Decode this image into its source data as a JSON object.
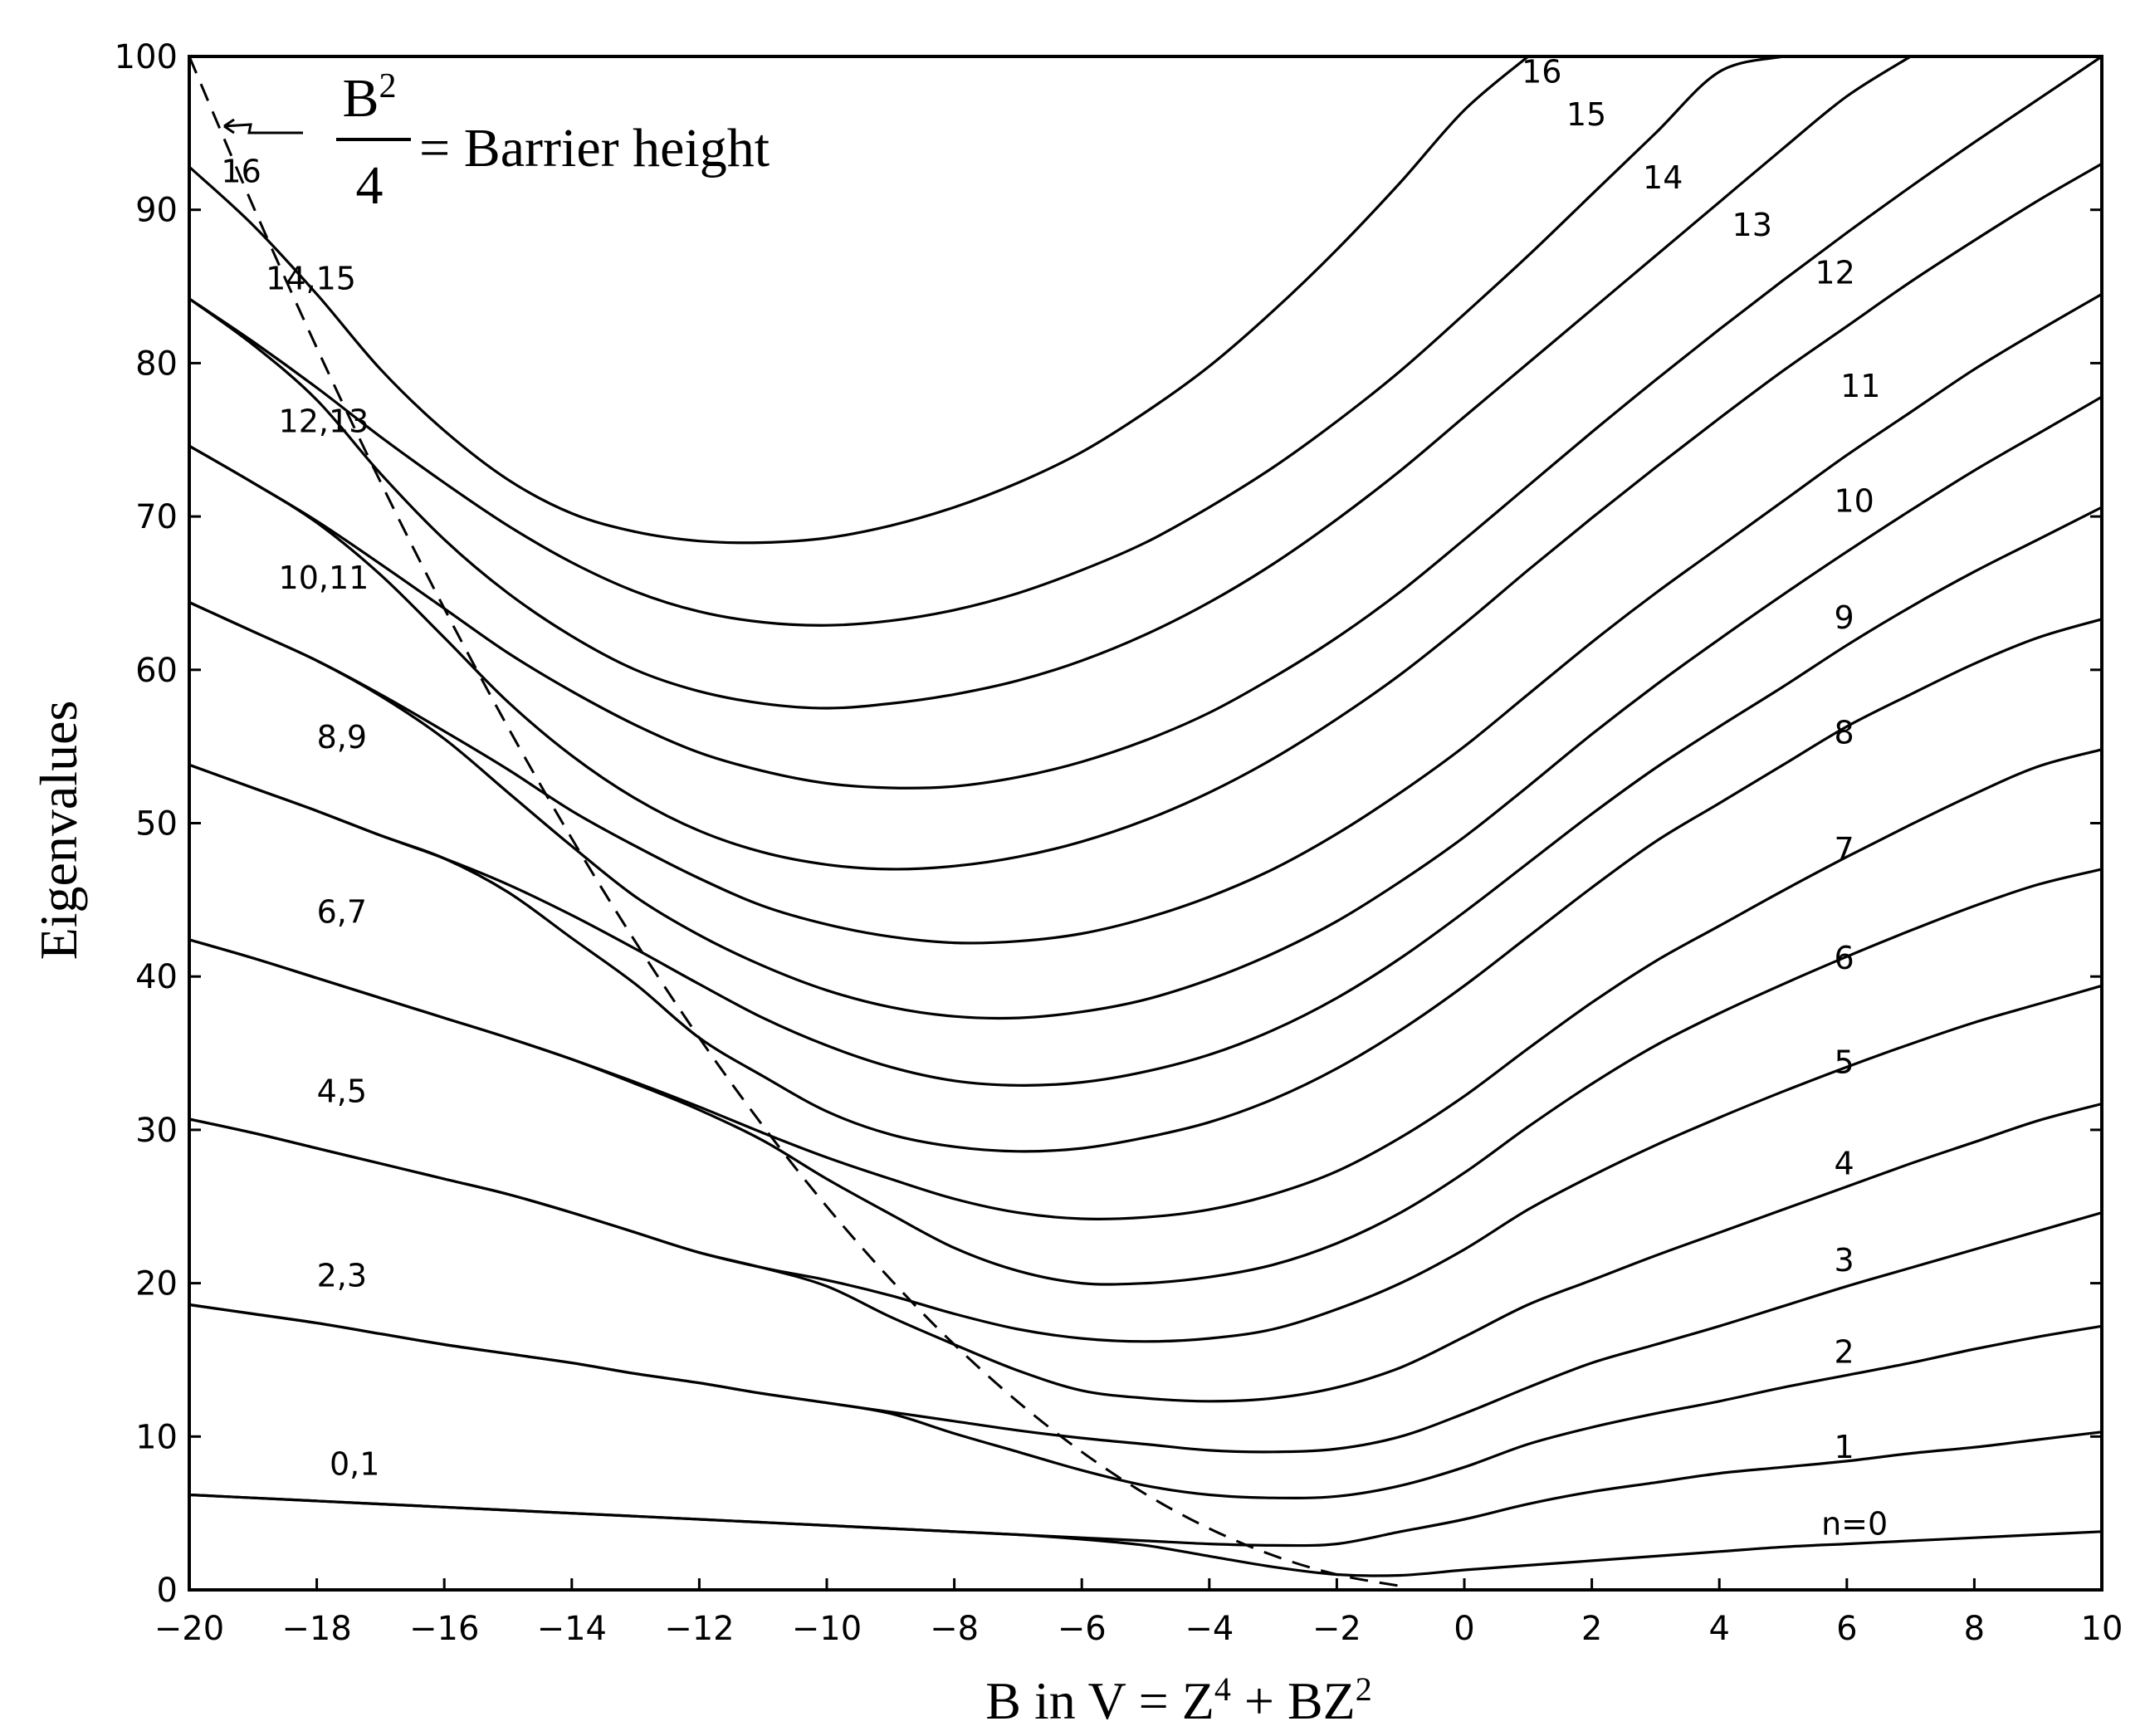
{
  "chart_data": {
    "type": "line",
    "title": "",
    "xlabel": "B in V = Z⁴ + BZ²",
    "xlabel_parts": [
      "B in V = Z",
      "4",
      " + BZ",
      "2"
    ],
    "ylabel": "Eigenvalues",
    "xlim": [
      -20,
      10
    ],
    "ylim": [
      0,
      100
    ],
    "xticks": [
      -20,
      -18,
      -16,
      -14,
      -12,
      -10,
      -8,
      -6,
      -4,
      -2,
      0,
      2,
      4,
      6,
      8,
      10
    ],
    "xtick_labels": [
      "−20",
      "−18",
      "−16",
      "−14",
      "−12",
      "−10",
      "−8",
      "−6",
      "−4",
      "−2",
      "0",
      "2",
      "4",
      "6",
      "8",
      "10"
    ],
    "yticks": [
      0,
      10,
      20,
      30,
      40,
      50,
      60,
      70,
      80,
      90,
      100
    ],
    "ytick_labels": [
      "0",
      "10",
      "20",
      "30",
      "40",
      "50",
      "60",
      "70",
      "80",
      "90",
      "100"
    ],
    "grid": false,
    "annotation": {
      "numerator_base": "B",
      "numerator_exp": "2",
      "denominator": "4",
      "text": "= Barrier height"
    },
    "barrier_curve": {
      "name": "B²/4 = Barrier height",
      "style": "dashed",
      "x": [
        -20,
        -19,
        -18,
        -17,
        -16,
        -15,
        -14,
        -13,
        -12,
        -11,
        -10,
        -9,
        -8,
        -7,
        -6,
        -5,
        -4,
        -3,
        -2,
        -1
      ],
      "y": [
        100,
        90.25,
        81,
        72.25,
        64,
        56.25,
        49,
        42.25,
        36,
        30.25,
        25,
        20.25,
        16,
        12.25,
        9,
        6.25,
        4,
        2.25,
        1,
        0.25
      ]
    },
    "x": [
      -20,
      -19,
      -18,
      -17,
      -16,
      -15,
      -14,
      -13,
      -12,
      -11,
      -10,
      -9,
      -8,
      -7,
      -6,
      -5,
      -4,
      -3,
      -2,
      -1,
      0,
      1,
      2,
      3,
      4,
      5,
      6,
      7,
      8,
      9,
      10
    ],
    "series": [
      {
        "name": "n=0",
        "values": [
          6.2,
          6.0,
          5.8,
          5.6,
          5.4,
          5.2,
          5.0,
          4.8,
          4.6,
          4.4,
          4.2,
          4.0,
          3.8,
          3.6,
          3.3,
          2.9,
          2.2,
          1.5,
          1.0,
          0.95,
          1.3,
          1.6,
          1.9,
          2.2,
          2.5,
          2.8,
          3.0,
          3.2,
          3.4,
          3.6,
          3.8
        ]
      },
      {
        "name": "1",
        "values": [
          6.2,
          6.0,
          5.8,
          5.6,
          5.4,
          5.2,
          5.0,
          4.8,
          4.6,
          4.4,
          4.2,
          4.0,
          3.8,
          3.6,
          3.4,
          3.2,
          3.0,
          2.9,
          3.0,
          3.8,
          4.6,
          5.6,
          6.4,
          7.0,
          7.6,
          8.0,
          8.4,
          8.9,
          9.3,
          9.8,
          10.3
        ]
      },
      {
        "name": "2",
        "values": [
          18.6,
          18.0,
          17.4,
          16.7,
          16.0,
          15.4,
          14.8,
          14.1,
          13.5,
          12.8,
          12.2,
          11.5,
          10.2,
          9.0,
          7.8,
          6.8,
          6.2,
          6.0,
          6.1,
          6.8,
          8.0,
          9.5,
          10.6,
          11.5,
          12.3,
          13.2,
          14.0,
          14.8,
          15.7,
          16.5,
          17.2
        ]
      },
      {
        "name": "3",
        "values": [
          18.6,
          18.0,
          17.4,
          16.7,
          16.0,
          15.4,
          14.8,
          14.1,
          13.5,
          12.8,
          12.2,
          11.6,
          11.0,
          10.4,
          9.9,
          9.5,
          9.1,
          9.0,
          9.2,
          10.0,
          11.5,
          13.2,
          14.8,
          16.0,
          17.2,
          18.5,
          19.8,
          21.0,
          22.2,
          23.4,
          24.6
        ]
      },
      {
        "name": "4",
        "values": [
          30.7,
          29.8,
          28.8,
          27.8,
          26.8,
          25.8,
          24.6,
          23.3,
          22.0,
          21.0,
          19.8,
          17.8,
          16.0,
          14.3,
          13.0,
          12.5,
          12.3,
          12.5,
          13.2,
          14.5,
          16.5,
          18.6,
          20.2,
          21.8,
          23.3,
          24.8,
          26.3,
          27.8,
          29.2,
          30.6,
          31.7
        ]
      },
      {
        "name": "5",
        "values": [
          30.7,
          29.8,
          28.8,
          27.8,
          26.8,
          25.8,
          24.6,
          23.3,
          22.0,
          21.0,
          20.2,
          19.2,
          18.0,
          17.0,
          16.4,
          16.2,
          16.4,
          17.0,
          18.3,
          20.0,
          22.2,
          24.8,
          27.0,
          29.0,
          30.8,
          32.5,
          34.1,
          35.6,
          37.0,
          38.2,
          39.4
        ]
      },
      {
        "name": "6",
        "values": [
          42.4,
          41.2,
          39.9,
          38.6,
          37.3,
          36.0,
          34.6,
          33.0,
          31.3,
          29.3,
          26.8,
          24.5,
          22.3,
          20.8,
          20.0,
          20.0,
          20.4,
          21.2,
          22.6,
          24.6,
          27.2,
          30.2,
          33.0,
          35.5,
          37.6,
          39.5,
          41.3,
          43.0,
          44.6,
          46.0,
          47.0
        ]
      },
      {
        "name": "7",
        "values": [
          42.4,
          41.2,
          39.9,
          38.6,
          37.3,
          36.0,
          34.6,
          33.1,
          31.5,
          29.8,
          28.2,
          26.8,
          25.5,
          24.6,
          24.2,
          24.3,
          24.8,
          25.8,
          27.3,
          29.5,
          32.2,
          35.3,
          38.3,
          41.0,
          43.3,
          45.6,
          47.8,
          49.9,
          51.9,
          53.7,
          54.8
        ]
      },
      {
        "name": "8",
        "values": [
          53.8,
          52.3,
          50.8,
          49.2,
          47.7,
          45.5,
          42.5,
          39.5,
          36.0,
          33.5,
          31.2,
          29.7,
          28.9,
          28.6,
          28.8,
          29.5,
          30.5,
          32.0,
          34.0,
          36.5,
          39.4,
          42.6,
          45.8,
          48.8,
          51.3,
          53.8,
          56.3,
          58.4,
          60.4,
          62.1,
          63.3
        ]
      },
      {
        "name": "9",
        "values": [
          53.8,
          52.3,
          50.8,
          49.2,
          47.7,
          46.0,
          44.0,
          41.8,
          39.5,
          37.3,
          35.5,
          34.1,
          33.2,
          32.9,
          33.1,
          33.8,
          34.9,
          36.5,
          38.6,
          41.2,
          44.2,
          47.4,
          50.6,
          53.6,
          56.3,
          58.9,
          61.6,
          64.1,
          66.4,
          68.5,
          70.6
        ]
      },
      {
        "name": "10",
        "values": [
          64.4,
          62.5,
          60.6,
          58.3,
          55.5,
          52.0,
          48.5,
          45.2,
          42.7,
          40.7,
          39.1,
          38.0,
          37.4,
          37.3,
          37.7,
          38.5,
          39.8,
          41.5,
          43.6,
          46.2,
          49.1,
          52.4,
          55.8,
          59.0,
          62.0,
          64.9,
          67.7,
          70.4,
          73.0,
          75.4,
          77.8
        ]
      },
      {
        "name": "11",
        "values": [
          64.4,
          62.5,
          60.6,
          58.4,
          56.0,
          53.5,
          50.8,
          48.5,
          46.4,
          44.6,
          43.4,
          42.6,
          42.2,
          42.3,
          42.8,
          43.8,
          45.2,
          47.0,
          49.3,
          52.0,
          55.0,
          58.4,
          61.8,
          65.0,
          68.0,
          71.0,
          74.0,
          76.8,
          79.6,
          82.1,
          84.5
        ]
      },
      {
        "name": "12",
        "values": [
          74.6,
          72.2,
          69.6,
          66.2,
          62.1,
          57.9,
          54.4,
          51.6,
          49.5,
          48.1,
          47.3,
          47.0,
          47.2,
          47.8,
          48.8,
          50.2,
          52.0,
          54.2,
          56.8,
          59.7,
          63.0,
          66.5,
          69.9,
          73.2,
          76.4,
          79.5,
          82.4,
          85.3,
          88.0,
          90.6,
          93.0
        ]
      },
      {
        "name": "13",
        "values": [
          74.6,
          72.2,
          69.7,
          66.9,
          64.0,
          61.1,
          58.6,
          56.4,
          54.6,
          53.4,
          52.6,
          52.3,
          52.4,
          53.0,
          54.0,
          55.4,
          57.2,
          59.5,
          62.1,
          65.1,
          68.5,
          72.0,
          75.5,
          78.9,
          82.2,
          85.4,
          88.5,
          91.5,
          94.4,
          97.2,
          100.0
        ]
      },
      {
        "name": "14",
        "values": [
          84.2,
          81.2,
          77.6,
          72.8,
          68.5,
          65.0,
          62.2,
          60.0,
          58.6,
          57.8,
          57.5,
          57.8,
          58.4,
          59.3,
          60.6,
          62.3,
          64.4,
          66.9,
          69.8,
          73.0,
          76.5,
          80.0,
          83.5,
          87.0,
          90.5,
          94.0,
          97.4,
          100.0,
          null,
          null,
          null
        ]
      },
      {
        "name": "15",
        "values": [
          84.2,
          81.4,
          78.4,
          75.2,
          72.2,
          69.4,
          67.0,
          65.1,
          63.8,
          63.1,
          62.9,
          63.2,
          63.9,
          65.0,
          66.5,
          68.3,
          70.6,
          73.2,
          76.2,
          79.5,
          83.2,
          87.0,
          91.0,
          95.0,
          99.0,
          100.0,
          null,
          null,
          null,
          null,
          null
        ]
      },
      {
        "name": "16",
        "values": [
          92.8,
          89.0,
          84.5,
          79.6,
          75.6,
          72.4,
          70.2,
          69.0,
          68.4,
          68.3,
          68.6,
          69.4,
          70.6,
          72.2,
          74.2,
          76.8,
          79.8,
          83.4,
          87.4,
          91.8,
          96.5,
          100.0,
          null,
          null,
          null,
          null,
          null,
          null,
          null,
          null,
          null
        ]
      }
    ],
    "curve_labels": [
      {
        "text": "0,1",
        "x": -17.8,
        "y": 7.5
      },
      {
        "text": "2,3",
        "x": -18.0,
        "y": 19.8
      },
      {
        "text": "4,5",
        "x": -18.0,
        "y": 31.8
      },
      {
        "text": "6,7",
        "x": -18.0,
        "y": 43.5
      },
      {
        "text": "8,9",
        "x": -18.0,
        "y": 54.9
      },
      {
        "text": "10,11",
        "x": -18.6,
        "y": 65.3
      },
      {
        "text": "12,13",
        "x": -18.6,
        "y": 75.5
      },
      {
        "text": "14,15",
        "x": -18.8,
        "y": 84.8
      },
      {
        "text": "16",
        "x": -19.5,
        "y": 91.8
      },
      {
        "text": "16",
        "x": 0.9,
        "y": 98.3
      },
      {
        "text": "15",
        "x": 1.6,
        "y": 95.5
      },
      {
        "text": "14",
        "x": 2.8,
        "y": 91.4
      },
      {
        "text": "13",
        "x": 4.2,
        "y": 88.3
      },
      {
        "text": "12",
        "x": 5.5,
        "y": 85.2
      },
      {
        "text": "11",
        "x": 5.9,
        "y": 77.8
      },
      {
        "text": "10",
        "x": 5.8,
        "y": 70.3
      },
      {
        "text": "9",
        "x": 5.8,
        "y": 62.7
      },
      {
        "text": "8",
        "x": 5.8,
        "y": 55.2
      },
      {
        "text": "7",
        "x": 5.8,
        "y": 47.6
      },
      {
        "text": "6",
        "x": 5.8,
        "y": 40.5
      },
      {
        "text": "5",
        "x": 5.8,
        "y": 33.7
      },
      {
        "text": "4",
        "x": 5.8,
        "y": 27.1
      },
      {
        "text": "3",
        "x": 5.8,
        "y": 20.8
      },
      {
        "text": "2",
        "x": 5.8,
        "y": 14.8
      },
      {
        "text": "1",
        "x": 5.8,
        "y": 8.6
      },
      {
        "text": "n=0",
        "x": 5.6,
        "y": 3.6
      }
    ]
  }
}
